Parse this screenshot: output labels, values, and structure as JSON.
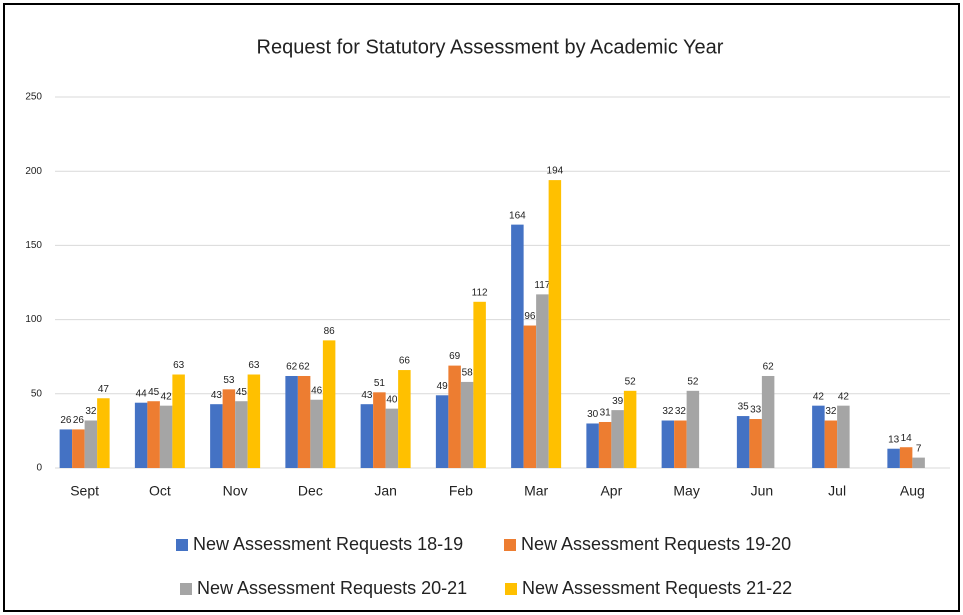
{
  "chart_data": {
    "type": "bar",
    "title": "Request for Statutory Assessment by Academic Year",
    "categories": [
      "Sept",
      "Oct",
      "Nov",
      "Dec",
      "Jan",
      "Feb",
      "Mar",
      "Apr",
      "May",
      "Jun",
      "Jul",
      "Aug"
    ],
    "series": [
      {
        "name": "New Assessment Requests 18-19",
        "color": "#4472c4",
        "values": [
          26,
          44,
          43,
          62,
          43,
          49,
          164,
          30,
          32,
          35,
          42,
          13
        ]
      },
      {
        "name": "New Assessment Requests 19-20",
        "color": "#ed7d31",
        "values": [
          26,
          45,
          53,
          62,
          51,
          69,
          96,
          31,
          32,
          33,
          32,
          14
        ]
      },
      {
        "name": "New Assessment Requests 20-21",
        "color": "#a5a5a5",
        "values": [
          32,
          42,
          45,
          46,
          40,
          58,
          117,
          39,
          52,
          62,
          42,
          7
        ]
      },
      {
        "name": "New Assessment Requests 21-22",
        "color": "#ffc000",
        "values": [
          47,
          63,
          63,
          86,
          66,
          112,
          194,
          52,
          null,
          null,
          null,
          null
        ]
      }
    ],
    "ylim": [
      0,
      250
    ],
    "yticks": [
      0,
      50,
      100,
      150,
      200,
      250
    ],
    "grid": true,
    "legend": "bottom"
  }
}
